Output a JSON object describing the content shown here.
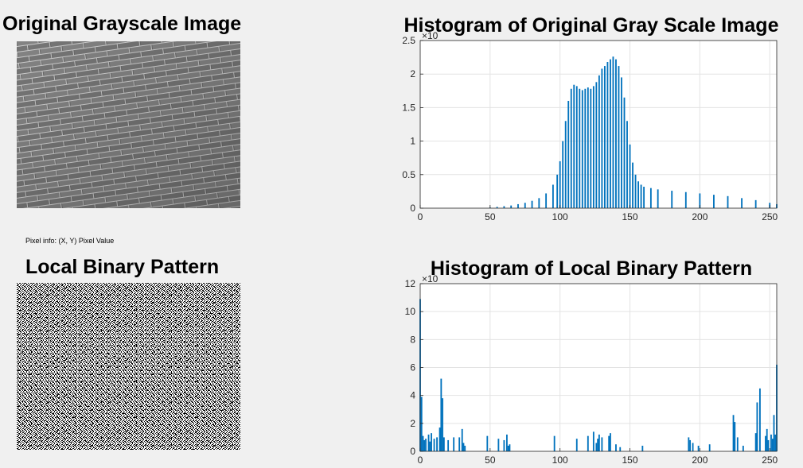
{
  "panels": {
    "original_image": {
      "title": "Original Grayscale Image"
    },
    "pixel_info": {
      "text": "Pixel info: (X, Y)  Pixel Value"
    },
    "lbp_image": {
      "title": "Local Binary Pattern"
    }
  },
  "chart_data": [
    {
      "type": "bar",
      "title": "Histogram of Original Gray Scale Image",
      "xlabel": "",
      "ylabel": "",
      "xlim": [
        0,
        255
      ],
      "ylim": [
        0,
        2.5
      ],
      "y_exponent": "×10",
      "xticks": [
        "0",
        "50",
        "100",
        "150",
        "200",
        "250"
      ],
      "yticks": [
        "0",
        "0.5",
        "1",
        "1.5",
        "2",
        "2.5"
      ],
      "grid": true,
      "color": "#0072bd",
      "x": [
        0,
        10,
        20,
        30,
        40,
        50,
        55,
        60,
        65,
        70,
        75,
        80,
        85,
        90,
        95,
        98,
        100,
        102,
        104,
        106,
        108,
        110,
        112,
        114,
        116,
        118,
        120,
        122,
        124,
        126,
        128,
        130,
        132,
        134,
        136,
        138,
        140,
        142,
        144,
        146,
        148,
        150,
        152,
        154,
        156,
        158,
        160,
        165,
        170,
        180,
        190,
        200,
        210,
        220,
        230,
        240,
        250,
        255
      ],
      "values": [
        0,
        0,
        0,
        0,
        0,
        0.01,
        0.02,
        0.03,
        0.04,
        0.06,
        0.08,
        0.11,
        0.15,
        0.22,
        0.35,
        0.5,
        0.7,
        1.0,
        1.3,
        1.6,
        1.78,
        1.84,
        1.82,
        1.78,
        1.76,
        1.78,
        1.8,
        1.78,
        1.82,
        1.88,
        1.98,
        2.08,
        2.12,
        2.18,
        2.22,
        2.26,
        2.22,
        2.12,
        1.95,
        1.65,
        1.3,
        0.95,
        0.68,
        0.5,
        0.4,
        0.35,
        0.32,
        0.3,
        0.28,
        0.26,
        0.24,
        0.22,
        0.2,
        0.18,
        0.15,
        0.12,
        0.08,
        0.06
      ]
    },
    {
      "type": "bar",
      "title": "Histogram of Local Binary Pattern",
      "xlabel": "",
      "ylabel": "",
      "xlim": [
        0,
        255
      ],
      "ylim": [
        0,
        12
      ],
      "y_exponent": "×10",
      "xticks": [
        "0",
        "50",
        "100",
        "150",
        "200",
        "250"
      ],
      "yticks": [
        "0",
        "2",
        "4",
        "6",
        "8",
        "10",
        "12"
      ],
      "grid": true,
      "color": "#0072bd",
      "x": [
        0,
        1,
        2,
        3,
        4,
        6,
        7,
        8,
        10,
        12,
        14,
        15,
        16,
        17,
        20,
        24,
        28,
        30,
        31,
        32,
        48,
        56,
        60,
        62,
        63,
        64,
        96,
        112,
        120,
        124,
        126,
        127,
        128,
        130,
        135,
        136,
        140,
        143,
        159,
        192,
        193,
        195,
        199,
        207,
        224,
        225,
        227,
        231,
        240,
        241,
        243,
        247,
        248,
        249,
        251,
        252,
        253,
        254,
        255
      ],
      "values": [
        10.9,
        3.9,
        1.1,
        0.8,
        0.9,
        1.2,
        0.7,
        1.3,
        0.9,
        1.0,
        1.7,
        5.2,
        3.8,
        1.0,
        0.8,
        1.0,
        1.0,
        1.6,
        0.6,
        0.4,
        1.1,
        0.9,
        0.8,
        1.2,
        0.4,
        0.5,
        1.1,
        0.9,
        1.1,
        1.4,
        0.6,
        0.9,
        1.2,
        1.0,
        1.1,
        1.3,
        0.5,
        0.3,
        0.4,
        1.0,
        0.8,
        0.6,
        0.4,
        0.5,
        2.6,
        2.1,
        1.0,
        0.4,
        1.3,
        3.5,
        4.5,
        1.1,
        1.6,
        0.8,
        1.2,
        0.9,
        2.6,
        1.2,
        6.2
      ]
    }
  ]
}
